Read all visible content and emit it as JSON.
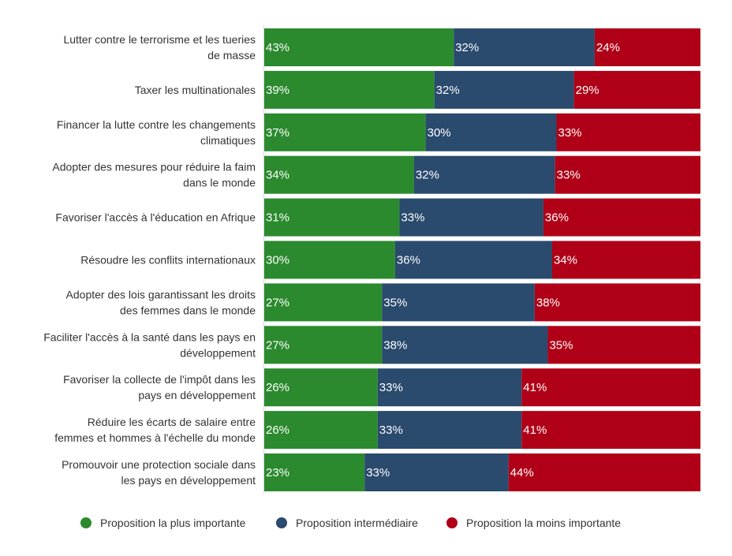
{
  "chart_data": {
    "type": "bar",
    "orientation": "horizontal",
    "stacked": "percent",
    "categories": [
      [
        "Lutter contre le terrorisme et les tueries",
        "de masse"
      ],
      [
        "Taxer les multinationales"
      ],
      [
        "Financer la lutte contre les changements",
        "climatiques"
      ],
      [
        "Adopter des mesures pour réduire la faim",
        "dans le monde"
      ],
      [
        "Favoriser l'accès à l'éducation en Afrique"
      ],
      [
        "Résoudre les conflits internationaux"
      ],
      [
        "Adopter des lois garantissant les droits",
        "des femmes dans le monde"
      ],
      [
        "Faciliter l'accès à la santé dans les pays en",
        "développement"
      ],
      [
        "Favoriser la collecte de l'impôt dans les",
        "pays en développement"
      ],
      [
        "Réduire les écarts de salaire entre",
        "femmes et hommes à l'échelle du monde"
      ],
      [
        "Promouvoir une protection sociale dans",
        "les pays en développement"
      ]
    ],
    "series": [
      {
        "name": "Proposition la plus importante",
        "color": "#2b8a2e",
        "values": [
          43,
          39,
          37,
          34,
          31,
          30,
          27,
          27,
          26,
          26,
          23
        ]
      },
      {
        "name": "Proposition intermédiaire",
        "color": "#2a4a6e",
        "values": [
          32,
          32,
          30,
          32,
          33,
          36,
          35,
          38,
          33,
          33,
          33
        ]
      },
      {
        "name": "Proposition la moins importante",
        "color": "#b00017",
        "values": [
          24,
          29,
          33,
          33,
          36,
          34,
          38,
          35,
          41,
          41,
          44
        ]
      }
    ],
    "value_suffix": "%",
    "legend_position": "bottom",
    "grid": false
  }
}
